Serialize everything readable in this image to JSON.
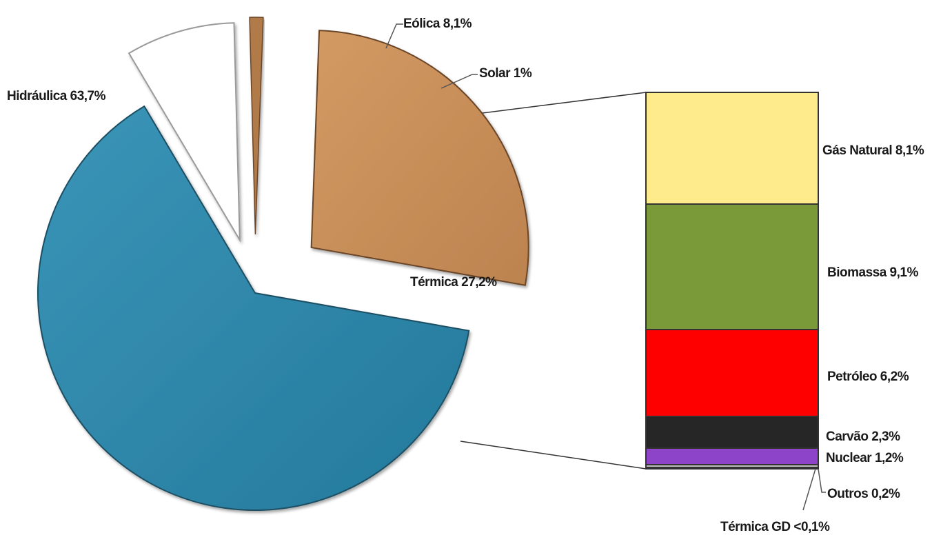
{
  "chart_data": {
    "type": "pie",
    "pie": {
      "slices": [
        {
          "key": "hidraulica",
          "label": "Hidráulica 63,7%",
          "value": 63.7,
          "color": "#2E86A8"
        },
        {
          "key": "eolica",
          "label": "Eólica 8,1%",
          "value": 8.1,
          "color": "#FFFFFF"
        },
        {
          "key": "solar",
          "label": "Solar 1%",
          "value": 1.0,
          "color": "#B07A4A"
        },
        {
          "key": "termica",
          "label": "Térmica 27,2%",
          "value": 27.2,
          "color": "#C98F5A"
        }
      ]
    },
    "breakdown": {
      "of": "termica",
      "segments": [
        {
          "key": "gas",
          "label": "Gás Natural 8,1%",
          "value": 8.1,
          "color": "#FDEB8C"
        },
        {
          "key": "biomassa",
          "label": "Biomassa 9,1%",
          "value": 9.1,
          "color": "#7A9A3A"
        },
        {
          "key": "petroleo",
          "label": "Petróleo 6,2%",
          "value": 6.2,
          "color": "#FF0000"
        },
        {
          "key": "carvao",
          "label": "Carvão 2,3%",
          "value": 2.3,
          "color": "#262626"
        },
        {
          "key": "nuclear",
          "label": "Nuclear 1,2%",
          "value": 1.2,
          "color": "#8E44C8"
        },
        {
          "key": "outros",
          "label": "Outros 0,2%",
          "value": 0.2,
          "color": "#BFBFBF"
        },
        {
          "key": "termica_gd",
          "label": "Térmica GD <0,1%",
          "value": 0.1,
          "color": "#888888"
        }
      ]
    }
  }
}
